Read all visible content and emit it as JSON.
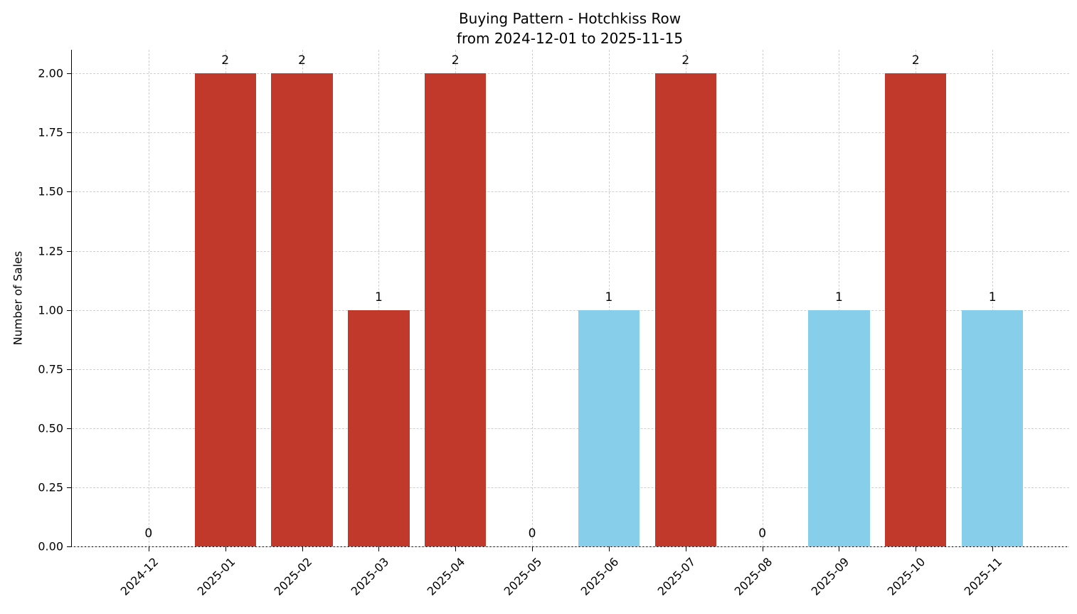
{
  "chart_data": {
    "type": "bar",
    "title": "Buying Pattern - Hotchkiss Row",
    "subtitle": "from 2024-12-01 to 2025-11-15",
    "xlabel": "",
    "ylabel": "Number of Sales",
    "categories": [
      "2024-12",
      "2025-01",
      "2025-02",
      "2025-03",
      "2025-04",
      "2025-05",
      "2025-06",
      "2025-07",
      "2025-08",
      "2025-09",
      "2025-10",
      "2025-11"
    ],
    "values": [
      0,
      2,
      2,
      1,
      2,
      0,
      1,
      2,
      0,
      1,
      2,
      1
    ],
    "bar_value_labels": [
      "0",
      "2",
      "2",
      "1",
      "2",
      "0",
      "1",
      "2",
      "0",
      "1",
      "2",
      "1"
    ],
    "bar_colors": [
      "#c0392b",
      "#c0392b",
      "#c0392b",
      "#c0392b",
      "#c0392b",
      "#c0392b",
      "#87ceeb",
      "#c0392b",
      "#c0392b",
      "#87ceeb",
      "#c0392b",
      "#87ceeb"
    ],
    "colors": {
      "red_bar": "#c0392b",
      "blue_bar": "#87ceeb",
      "grid": "#cfcfcf",
      "axis": "#000000",
      "text": "#000000"
    },
    "ylim": [
      0,
      2.1
    ],
    "xlim": [
      -1,
      12
    ],
    "yticks": [
      0,
      0.25,
      0.5,
      0.75,
      1.0,
      1.25,
      1.5,
      1.75,
      2.0
    ],
    "ytick_labels": [
      "0.00",
      "0.25",
      "0.50",
      "0.75",
      "1.00",
      "1.25",
      "1.50",
      "1.75",
      "2.00"
    ],
    "grid": true,
    "grid_style": "dashed",
    "legend": "none",
    "bar_width_fraction": 0.8,
    "xtick_rotation_deg": 45
  }
}
